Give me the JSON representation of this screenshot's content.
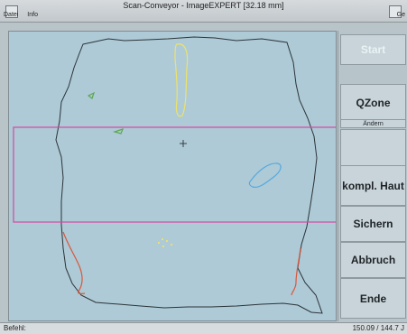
{
  "title": "Scan-Conveyor - ImageEXPERT   [32.18 mm]",
  "menu": {
    "items": [
      "Datei",
      "Info"
    ],
    "right": "Ge"
  },
  "sidebar": {
    "start": "Start",
    "qzone": "QZone",
    "aendern": "Ändern",
    "kompl_haut": "kompl. Haut",
    "sichern": "Sichern",
    "abbruch": "Abbruch",
    "ende": "Ende"
  },
  "status": {
    "command_label": "Befehl:",
    "coords": "150.09 / 144.7 J"
  },
  "colors": {
    "outline": "#2b3438",
    "selection": "#d34aa2",
    "yellow_marker": "#ece36a",
    "blue_marker": "#54a9df",
    "green_marker": "#5aa84f",
    "red_marker": "#d9573c"
  },
  "icons": {
    "crosshair": "crosshair-icon"
  }
}
